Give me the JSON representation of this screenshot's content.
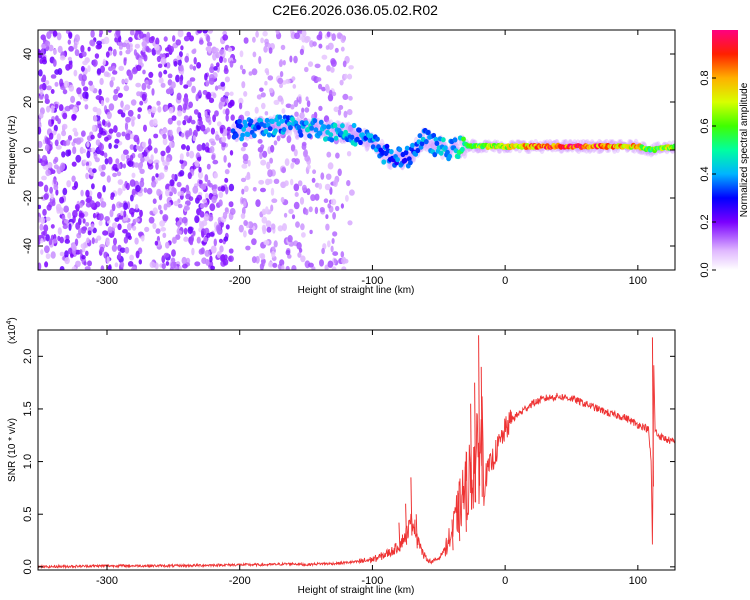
{
  "title": "C2E6.2026.036.05.02.R02",
  "chart_data": [
    {
      "type": "heatmap",
      "name": "spectrogram",
      "xlabel": "Height of straight line (km)",
      "ylabel": "Frequency (Hz)",
      "xlim": [
        -352,
        128
      ],
      "ylim": [
        -50,
        50
      ],
      "xticks": [
        -300,
        -200,
        -100,
        0,
        100
      ],
      "yticks": [
        -40,
        -20,
        0,
        20,
        40
      ],
      "colorbar": {
        "label": "Normalized spectral amplitude",
        "range": [
          0,
          1
        ],
        "ticks": [
          0.0,
          0.2,
          0.4,
          0.6,
          0.8
        ]
      },
      "ridge": [
        {
          "x": -205,
          "f": 8,
          "amp": 0.35
        },
        {
          "x": -190,
          "f": 9,
          "amp": 0.4
        },
        {
          "x": -175,
          "f": 10,
          "amp": 0.4
        },
        {
          "x": -160,
          "f": 10,
          "amp": 0.42
        },
        {
          "x": -145,
          "f": 9,
          "amp": 0.45
        },
        {
          "x": -130,
          "f": 8,
          "amp": 0.45
        },
        {
          "x": -115,
          "f": 7,
          "amp": 0.42
        },
        {
          "x": -100,
          "f": 3,
          "amp": 0.4
        },
        {
          "x": -90,
          "f": -2,
          "amp": 0.38
        },
        {
          "x": -75,
          "f": -4,
          "amp": 0.35
        },
        {
          "x": -62,
          "f": 5,
          "amp": 0.4
        },
        {
          "x": -50,
          "f": 1,
          "amp": 0.42
        },
        {
          "x": -40,
          "f": 0,
          "amp": 0.45
        },
        {
          "x": -30,
          "f": 2,
          "amp": 0.55
        },
        {
          "x": -15,
          "f": 1.5,
          "amp": 0.7
        },
        {
          "x": 0,
          "f": 1.5,
          "amp": 0.75
        },
        {
          "x": 20,
          "f": 1.5,
          "amp": 0.85
        },
        {
          "x": 40,
          "f": 1.5,
          "amp": 0.95
        },
        {
          "x": 60,
          "f": 1.5,
          "amp": 0.95
        },
        {
          "x": 80,
          "f": 1.5,
          "amp": 0.9
        },
        {
          "x": 100,
          "f": 1.5,
          "amp": 0.8
        },
        {
          "x": 110,
          "f": 0,
          "amp": 0.6
        },
        {
          "x": 128,
          "f": 1.5,
          "amp": 0.75
        }
      ]
    },
    {
      "type": "line",
      "name": "snr",
      "xlabel": "Height of straight line (km)",
      "ylabel": "SNR (10 * v/v)",
      "yexponent": "(x10",
      "yexponent_power": "4",
      "xlim": [
        -352,
        128
      ],
      "ylim": [
        -0.03,
        2.25
      ],
      "xticks": [
        -300,
        -200,
        -100,
        0,
        100
      ],
      "yticks": [
        0.0,
        0.5,
        1.0,
        1.5,
        2.0
      ],
      "ytick_labels": [
        "0.0",
        "0.5",
        "1.0",
        "1.5",
        "2.0"
      ],
      "color": "#ee3333",
      "series": [
        {
          "name": "SNR",
          "x": [
            -352,
            -300,
            -250,
            -200,
            -180,
            -160,
            -150,
            -140,
            -130,
            -120,
            -110,
            -100,
            -95,
            -90,
            -85,
            -80,
            -75,
            -70,
            -65,
            -62,
            -58,
            -55,
            -50,
            -45,
            -40,
            -35,
            -30,
            -25,
            -20,
            -17,
            -15,
            -10,
            -5,
            0,
            5,
            10,
            15,
            20,
            30,
            40,
            50,
            60,
            70,
            80,
            90,
            100,
            105,
            108,
            110,
            111,
            112,
            113,
            115,
            120,
            128
          ],
          "y": [
            0.0,
            0.01,
            0.01,
            0.02,
            0.02,
            0.03,
            0.02,
            0.03,
            0.03,
            0.04,
            0.05,
            0.07,
            0.09,
            0.12,
            0.15,
            0.2,
            0.3,
            0.45,
            0.25,
            0.12,
            0.06,
            0.05,
            0.08,
            0.18,
            0.32,
            0.55,
            0.75,
            0.9,
            1.05,
            1.25,
            0.85,
            1.0,
            1.15,
            1.3,
            1.4,
            1.45,
            1.5,
            1.55,
            1.6,
            1.62,
            1.6,
            1.55,
            1.5,
            1.45,
            1.42,
            1.35,
            1.33,
            1.3,
            1.0,
            0.2,
            1.9,
            1.3,
            1.25,
            1.22,
            1.18
          ]
        }
      ],
      "spikes": [
        {
          "x": -80,
          "y": 0.42
        },
        {
          "x": -75,
          "y": 0.6
        },
        {
          "x": -71,
          "y": 0.85
        },
        {
          "x": -67,
          "y": 0.5
        },
        {
          "x": -40,
          "y": 0.45
        },
        {
          "x": -35,
          "y": 0.7
        },
        {
          "x": -30,
          "y": 0.95
        },
        {
          "x": -26,
          "y": 1.55
        },
        {
          "x": -23,
          "y": 1.75
        },
        {
          "x": -20,
          "y": 2.2
        },
        {
          "x": -18,
          "y": 1.9
        },
        {
          "x": 111,
          "y": 2.18
        }
      ]
    }
  ]
}
